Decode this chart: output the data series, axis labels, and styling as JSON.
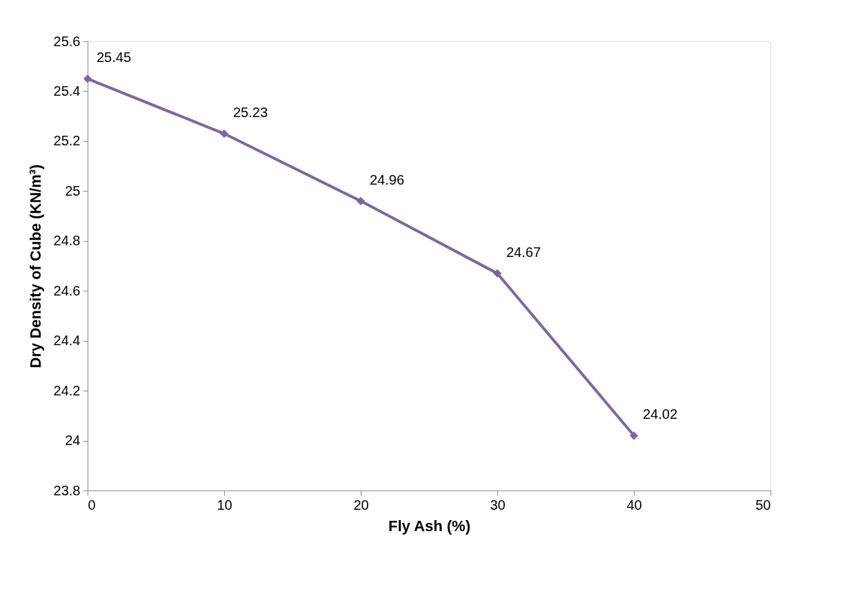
{
  "chart_data": {
    "type": "line",
    "xlabel": "Fly Ash (%)",
    "ylabel": "Dry Density of Cube (KN/m³)",
    "x": [
      0,
      10,
      20,
      30,
      40
    ],
    "series": [
      {
        "color": "#8064a2",
        "values": [
          25.45,
          25.23,
          24.96,
          24.67,
          24.02
        ]
      }
    ],
    "xlim": [
      0,
      50
    ],
    "xticks": [
      0,
      10,
      20,
      30,
      40,
      50
    ],
    "ylim": [
      23.8,
      25.6
    ],
    "yticks": [
      23.8,
      24,
      24.2,
      24.4,
      24.6,
      24.8,
      25,
      25.2,
      25.4,
      25.6
    ],
    "grid": false,
    "marker": "diamond",
    "line_style": "solid",
    "data_labels": true
  }
}
